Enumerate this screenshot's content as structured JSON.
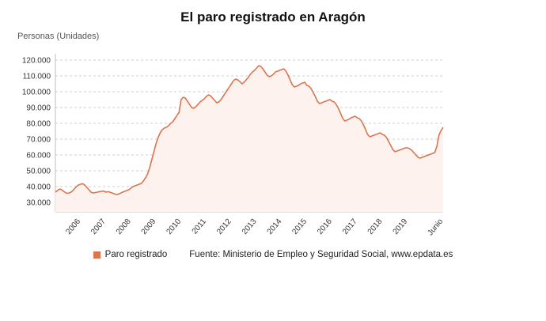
{
  "title": "El paro registrado en Aragón",
  "y_axis_title": "Personas (Unidades)",
  "legend": {
    "label": "Paro registrado"
  },
  "source": "Fuente: Ministerio de Empleo y Seguridad Social, www.epdata.es",
  "colors": {
    "line": "#dc744e",
    "area": "#fdf2ed",
    "grid": "#cccccc",
    "axis": "#bfbfbf",
    "tick_text": "#333333"
  },
  "chart_data": {
    "type": "line",
    "title": "El paro registrado en Aragón",
    "ylabel": "Personas (Unidades)",
    "series_name": "Paro registrado",
    "unit": "personas",
    "frequency": "monthly",
    "x_start": "2005-01",
    "x_end": "2020-06",
    "ylim": [
      30000,
      120000
    ],
    "y_step": 10000,
    "grid": "dashed-horizontal",
    "legend_position": "bottom",
    "y_tick_labels": [
      "30.000",
      "40.000",
      "50.000",
      "60.000",
      "70.000",
      "80.000",
      "90.000",
      "100.000",
      "110.000",
      "120.000"
    ],
    "x_ticks": [
      {
        "label": "2006",
        "index": 12
      },
      {
        "label": "2007",
        "index": 24
      },
      {
        "label": "2008",
        "index": 36
      },
      {
        "label": "2009",
        "index": 48
      },
      {
        "label": "2010",
        "index": 60
      },
      {
        "label": "2011",
        "index": 72
      },
      {
        "label": "2012",
        "index": 84
      },
      {
        "label": "2013",
        "index": 96
      },
      {
        "label": "2014",
        "index": 108
      },
      {
        "label": "2015",
        "index": 120
      },
      {
        "label": "2016",
        "index": 132
      },
      {
        "label": "2017",
        "index": 144
      },
      {
        "label": "2018",
        "index": 156
      },
      {
        "label": "2019",
        "index": 168
      },
      {
        "label": "Junio",
        "index": 185
      }
    ],
    "values": [
      36500,
      37500,
      38500,
      38000,
      37000,
      36000,
      35800,
      36200,
      37000,
      38500,
      40000,
      41000,
      41500,
      41800,
      41000,
      39500,
      38000,
      36500,
      36000,
      36200,
      36500,
      36800,
      37000,
      37200,
      36500,
      36800,
      36500,
      36000,
      35500,
      35000,
      35200,
      35800,
      36500,
      37000,
      37500,
      38000,
      39000,
      40000,
      40500,
      41000,
      41500,
      42000,
      43500,
      45500,
      48000,
      52000,
      57000,
      62000,
      67000,
      71000,
      74000,
      76000,
      77000,
      77500,
      78500,
      80000,
      81000,
      83000,
      85000,
      87000,
      95000,
      96500,
      96000,
      94000,
      92000,
      90000,
      89500,
      90500,
      92000,
      93500,
      94500,
      95500,
      97000,
      98000,
      97500,
      96000,
      94500,
      93000,
      93500,
      95000,
      97000,
      99000,
      101000,
      103000,
      105000,
      107000,
      108000,
      107500,
      106500,
      105000,
      106000,
      107500,
      109000,
      111000,
      112500,
      113500,
      115000,
      116500,
      116000,
      114500,
      112500,
      110500,
      109500,
      110000,
      111000,
      112500,
      113000,
      113500,
      114000,
      114500,
      113000,
      110500,
      107500,
      104500,
      103000,
      103500,
      104000,
      105000,
      105500,
      106000,
      104000,
      103500,
      102000,
      99500,
      97000,
      94000,
      92500,
      93000,
      93500,
      94000,
      94500,
      95000,
      94000,
      93500,
      92000,
      89500,
      86500,
      83500,
      81500,
      82000,
      82500,
      83500,
      84000,
      84500,
      83500,
      83000,
      81500,
      79000,
      76000,
      73000,
      71500,
      72000,
      72500,
      73000,
      73500,
      74000,
      73000,
      72500,
      71000,
      68500,
      66000,
      63500,
      62000,
      62500,
      63000,
      63500,
      64000,
      64500,
      64500,
      64000,
      63000,
      61500,
      60000,
      58500,
      58000,
      58500,
      59000,
      59500,
      60000,
      60500,
      61000,
      61500,
      65500,
      72500,
      75500,
      77500
    ]
  }
}
